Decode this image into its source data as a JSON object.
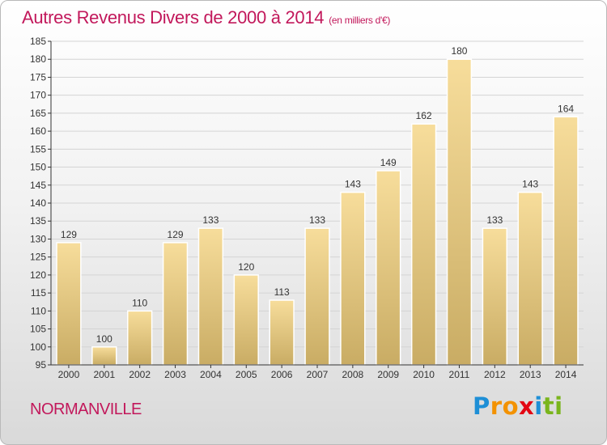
{
  "title": "Autres Revenus Divers de 2000 à 2014",
  "unit": "(en milliers d'€)",
  "commune": "NORMANVILLE",
  "logo": {
    "letters": [
      "P",
      "r",
      "o",
      "x",
      "i",
      "t",
      "i"
    ],
    "colors": [
      "#1e8fd6",
      "#f39200",
      "#f39200",
      "#e30613",
      "#1e8fd6",
      "#7ab51d",
      "#7ab51d"
    ]
  },
  "chart_data": {
    "type": "bar",
    "categories": [
      "2000",
      "2001",
      "2002",
      "2003",
      "2004",
      "2005",
      "2006",
      "2007",
      "2008",
      "2009",
      "2010",
      "2011",
      "2012",
      "2013",
      "2014"
    ],
    "values": [
      129,
      100,
      110,
      129,
      133,
      120,
      113,
      133,
      143,
      149,
      162,
      180,
      133,
      143,
      164
    ],
    "ylim": [
      95,
      185
    ],
    "yticks": [
      95,
      100,
      105,
      110,
      115,
      120,
      125,
      130,
      135,
      140,
      145,
      150,
      155,
      160,
      165,
      170,
      175,
      180,
      185
    ],
    "grid": true,
    "colors": {
      "bar_top": "#f7dd9b",
      "bar_bottom": "#c9ac64",
      "grid": "#d4d4d4",
      "axis": "#333333"
    }
  }
}
